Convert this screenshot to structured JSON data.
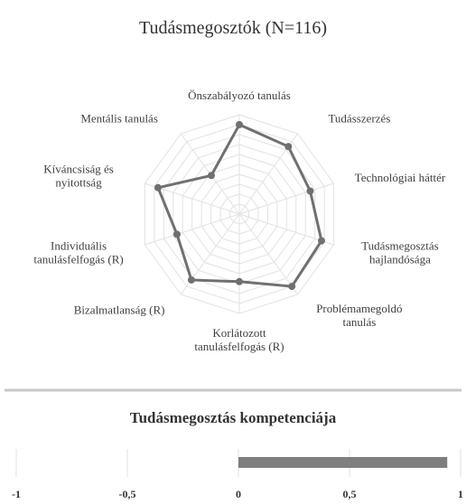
{
  "chart_data": [
    {
      "type": "radar",
      "title": "Tudásmegosztók (N=116)",
      "categories": [
        "Önszabályozó tanulás",
        "Tudásszerzés",
        "Technológiai háttér",
        "Tudásmegosztás hajlandósága",
        "Problémamegoldó tanulás",
        "Korlátozott tanulásfelfogás (R)",
        "Bizalmatlanság (R)",
        "Individuális tanulásfelfogás (R)",
        "Kíváncsiság és nyitottság",
        "Mentális tanulás"
      ],
      "values": [
        0.9,
        0.84,
        0.75,
        0.87,
        0.9,
        0.68,
        0.82,
        0.66,
        0.86,
        0.48
      ],
      "color": "#707070",
      "rlim": [
        0,
        1
      ],
      "rticks": [
        0,
        0.1,
        0.2,
        0.3,
        0.4,
        0.5,
        0.6,
        0.7,
        0.8,
        0.9,
        1
      ],
      "grid": true
    },
    {
      "type": "hbar",
      "title": "Tudásmegosztás kompetenciája",
      "categories": [
        null
      ],
      "values": [
        0.94
      ],
      "color": "#7f7f7f",
      "xlim": [
        -1,
        1
      ],
      "xticks": [
        -1,
        {
          "value": -0.5,
          "label": "-0,5"
        },
        0,
        {
          "value": 0.5,
          "label": "0,5"
        },
        1
      ],
      "grid": true
    }
  ]
}
